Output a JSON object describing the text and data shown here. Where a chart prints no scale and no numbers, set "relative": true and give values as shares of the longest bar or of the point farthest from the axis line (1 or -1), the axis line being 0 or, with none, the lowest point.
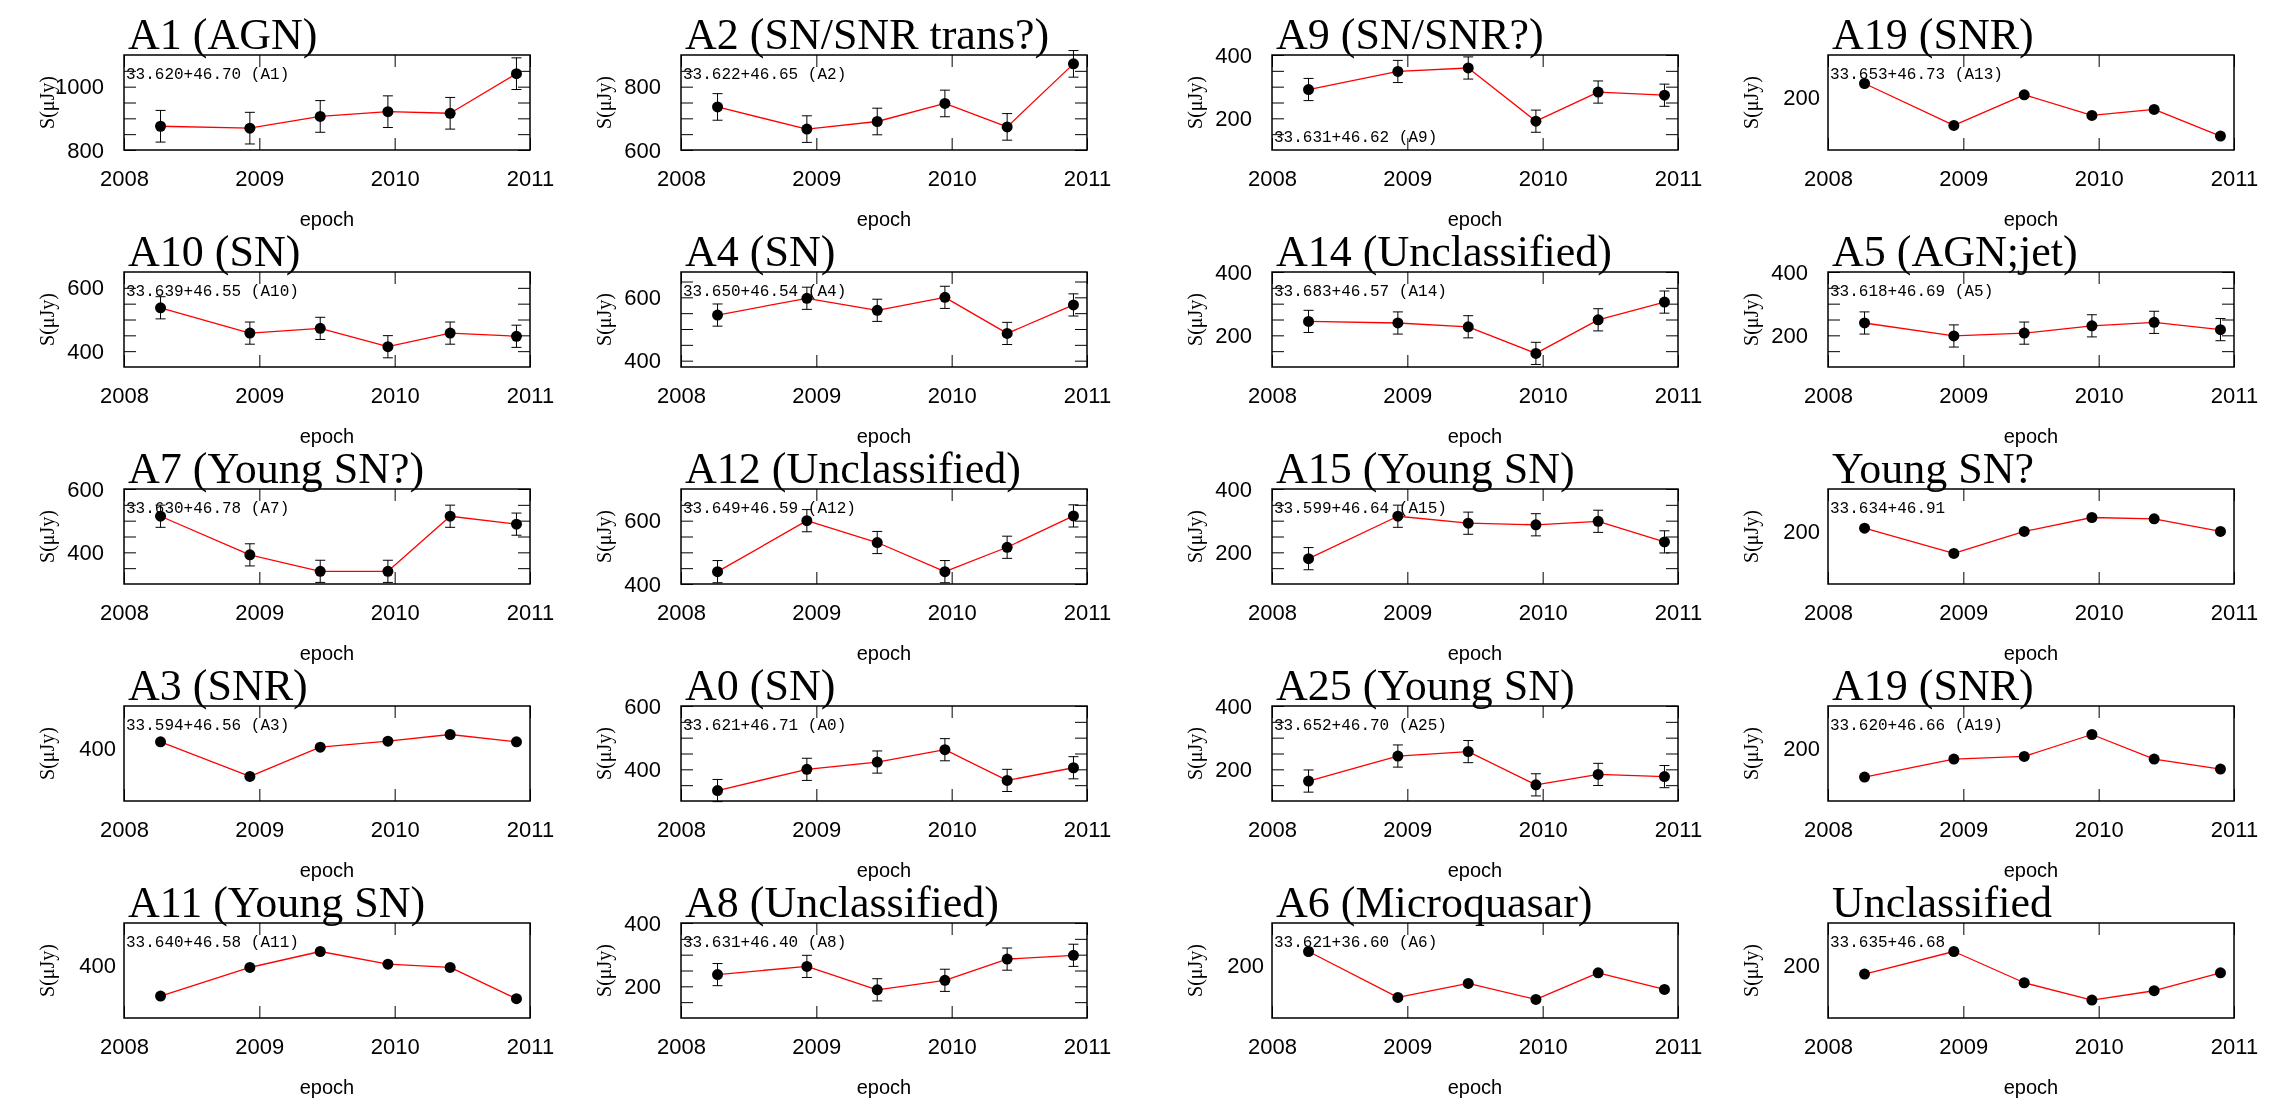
{
  "chart_data": [
    {
      "type": "line",
      "title": "A1 (AGN)",
      "annotations": [
        "33.620+46.70 (A1)"
      ],
      "xlabel": "epoch",
      "ylabel": "S(μJy)",
      "marker": "circle",
      "line_style": "solid",
      "xlim": [
        2008,
        2011
      ],
      "xticks": [
        2008,
        2009,
        2010,
        2011
      ],
      "ylim": [
        800,
        1100
      ],
      "yticks": [
        800,
        {
          "value": 850,
          "label": null
        },
        {
          "value": 900,
          "label": null
        },
        {
          "value": 950,
          "label": null
        },
        1000,
        {
          "value": 1050,
          "label": null
        }
      ],
      "x": [
        2008.27,
        2008.93,
        2009.45,
        2009.95,
        2010.41,
        2010.9
      ],
      "series": [
        {
          "color": "#ff0000",
          "values": [
            875,
            869,
            906,
            921,
            916,
            1041
          ],
          "errors": [
            50,
            50,
            50,
            50,
            50,
            50
          ]
        }
      ]
    },
    {
      "type": "line",
      "title": "A2 (SN/SNR trans?)",
      "annotations": [
        "33.622+46.65 (A2)"
      ],
      "xlabel": "epoch",
      "ylabel": "S(μJy)",
      "marker": "circle",
      "line_style": "solid",
      "xlim": [
        2008,
        2011
      ],
      "xticks": [
        2008,
        2009,
        2010,
        2011
      ],
      "ylim": [
        600,
        900
      ],
      "yticks": [
        600,
        {
          "value": 650,
          "label": null
        },
        {
          "value": 700,
          "label": null
        },
        {
          "value": 750,
          "label": null
        },
        800,
        {
          "value": 850,
          "label": null
        }
      ],
      "x": [
        2008.27,
        2008.93,
        2009.45,
        2009.95,
        2010.41,
        2010.9
      ],
      "series": [
        {
          "color": "#ff0000",
          "values": [
            736,
            666,
            690,
            747,
            673,
            872
          ],
          "errors": [
            42,
            42,
            42,
            42,
            42,
            42
          ]
        }
      ]
    },
    {
      "type": "line",
      "title": "A9 (SN/SNR?)",
      "annotations": [
        "33.631+46.62 (A9)"
      ],
      "xlabel": "epoch",
      "ylabel": "S(μJy)",
      "marker": "circle",
      "line_style": "solid",
      "xlim": [
        2008,
        2011
      ],
      "xticks": [
        2008,
        2009,
        2010,
        2011
      ],
      "ylim": [
        100,
        400
      ],
      "yticks": [
        {
          "value": 150,
          "label": null
        },
        200,
        {
          "value": 250,
          "label": null
        },
        {
          "value": 300,
          "label": null
        },
        {
          "value": 350,
          "label": null
        },
        400
      ],
      "x": [
        2008.27,
        2008.93,
        2009.45,
        2009.95,
        2010.41,
        2010.9
      ],
      "series": [
        {
          "color": "#ff0000",
          "values": [
            291,
            348,
            359,
            191,
            283,
            273
          ],
          "errors": [
            35,
            35,
            35,
            35,
            35,
            35
          ]
        }
      ]
    },
    {
      "type": "line",
      "title": "A19 (SNR)",
      "annotations": [
        "33.653+46.73 (A13)",
        "200"
      ],
      "xlabel": "epoch",
      "ylabel": "S(μJy)",
      "marker": "circle",
      "line_style": "solid",
      "xlim": [
        2008,
        2011
      ],
      "xticks": [
        2008,
        2009,
        2010,
        2011
      ],
      "relative": true,
      "x": [
        2008.27,
        2008.93,
        2009.45,
        2009.95,
        2010.41,
        2010.9
      ],
      "series": [
        {
          "color": "#ff0000",
          "values": [
            1,
            0.37,
            0.83,
            0.52,
            0.61,
            0.21
          ]
        }
      ]
    },
    {
      "type": "line",
      "title": "A10 (SN)",
      "annotations": [
        "33.639+46.55 (A10)"
      ],
      "xlabel": "epoch",
      "ylabel": "S(μJy)",
      "marker": "circle",
      "line_style": "solid",
      "xlim": [
        2008,
        2011
      ],
      "xticks": [
        2008,
        2009,
        2010,
        2011
      ],
      "ylim": [
        350,
        650
      ],
      "yticks": [
        400,
        {
          "value": 450,
          "label": null
        },
        {
          "value": 500,
          "label": null
        },
        {
          "value": 550,
          "label": null
        },
        600
      ],
      "x": [
        2008.27,
        2008.93,
        2009.45,
        2009.95,
        2010.41,
        2010.9
      ],
      "series": [
        {
          "color": "#ff0000",
          "values": [
            537,
            457,
            472,
            414,
            457,
            447
          ],
          "errors": [
            35,
            35,
            35,
            35,
            35,
            35
          ]
        }
      ]
    },
    {
      "type": "line",
      "title": "A4 (SN)",
      "annotations": [
        "33.650+46.54 (A4)"
      ],
      "xlabel": "epoch",
      "ylabel": "S(μJy)",
      "marker": "circle",
      "line_style": "solid",
      "xlim": [
        2008,
        2011
      ],
      "xticks": [
        2008,
        2009,
        2010,
        2011
      ],
      "ylim": [
        380,
        680
      ],
      "yticks": [
        400,
        {
          "value": 450,
          "label": null
        },
        {
          "value": 500,
          "label": null
        },
        {
          "value": 550,
          "label": null
        },
        600,
        {
          "value": 650,
          "label": null
        }
      ],
      "x": [
        2008.27,
        2008.93,
        2009.45,
        2009.95,
        2010.41,
        2010.9
      ],
      "series": [
        {
          "color": "#ff0000",
          "values": [
            544,
            597,
            559,
            600,
            486,
            576
          ],
          "errors": [
            35,
            35,
            35,
            35,
            35,
            35
          ]
        }
      ]
    },
    {
      "type": "line",
      "title": "A14 (Unclassified)",
      "annotations": [
        "33.683+46.57 (A14)"
      ],
      "xlabel": "epoch",
      "ylabel": "S(μJy)",
      "marker": "circle",
      "line_style": "solid",
      "xlim": [
        2008,
        2011
      ],
      "xticks": [
        2008,
        2009,
        2010,
        2011
      ],
      "ylim": [
        100,
        400
      ],
      "yticks": [
        {
          "value": 150,
          "label": null
        },
        200,
        {
          "value": 250,
          "label": null
        },
        {
          "value": 300,
          "label": null
        },
        {
          "value": 350,
          "label": null
        },
        400
      ],
      "x": [
        2008.27,
        2008.93,
        2009.45,
        2009.95,
        2010.41,
        2010.9
      ],
      "series": [
        {
          "color": "#ff0000",
          "values": [
            244,
            239,
            227,
            143,
            249,
            305
          ],
          "errors": [
            35,
            35,
            35,
            35,
            35,
            35
          ]
        }
      ]
    },
    {
      "type": "line",
      "title": "A5 (AGN;jet)",
      "annotations": [
        "33.618+46.69 (A5)"
      ],
      "xlabel": "epoch",
      "ylabel": "S(μJy)",
      "marker": "circle",
      "line_style": "solid",
      "xlim": [
        2008,
        2011
      ],
      "xticks": [
        2008,
        2009,
        2010,
        2011
      ],
      "ylim": [
        100,
        400
      ],
      "yticks": [
        {
          "value": 150,
          "label": null
        },
        200,
        {
          "value": 250,
          "label": null
        },
        {
          "value": 300,
          "label": null
        },
        {
          "value": 350,
          "label": null
        },
        400
      ],
      "x": [
        2008.27,
        2008.93,
        2009.45,
        2009.95,
        2010.41,
        2010.9
      ],
      "series": [
        {
          "color": "#ff0000",
          "values": [
            239,
            198,
            207,
            230,
            241,
            218
          ],
          "errors": [
            35,
            35,
            35,
            35,
            35,
            35
          ]
        }
      ]
    },
    {
      "type": "line",
      "title": "A7 (Young SN?)",
      "annotations": [
        "33.630+46.78 (A7)"
      ],
      "xlabel": "epoch",
      "ylabel": "S(μJy)",
      "marker": "circle",
      "line_style": "solid",
      "xlim": [
        2008,
        2011
      ],
      "xticks": [
        2008,
        2009,
        2010,
        2011
      ],
      "ylim": [
        300,
        600
      ],
      "yticks": [
        {
          "value": 350,
          "label": null
        },
        400,
        {
          "value": 450,
          "label": null
        },
        {
          "value": 500,
          "label": null
        },
        {
          "value": 550,
          "label": null
        },
        600
      ],
      "x": [
        2008.27,
        2008.93,
        2009.45,
        2009.95,
        2010.41,
        2010.9
      ],
      "series": [
        {
          "color": "#ff0000",
          "values": [
            514,
            392,
            340,
            340,
            514,
            489
          ],
          "errors": [
            35,
            35,
            35,
            35,
            35,
            35
          ]
        }
      ]
    },
    {
      "type": "line",
      "title": "A12 (Unclassified)",
      "annotations": [
        "33.649+46.59 (A12)"
      ],
      "xlabel": "epoch",
      "ylabel": "S(μJy)",
      "marker": "circle",
      "line_style": "solid",
      "xlim": [
        2008,
        2011
      ],
      "xticks": [
        2008,
        2009,
        2010,
        2011
      ],
      "ylim": [
        400,
        700
      ],
      "yticks": [
        400,
        {
          "value": 450,
          "label": null
        },
        {
          "value": 500,
          "label": null
        },
        {
          "value": 550,
          "label": null
        },
        600,
        {
          "value": 650,
          "label": null
        }
      ],
      "x": [
        2008.27,
        2008.93,
        2009.45,
        2009.95,
        2010.41,
        2010.9
      ],
      "series": [
        {
          "color": "#ff0000",
          "values": [
            439,
            600,
            531,
            439,
            516,
            615
          ],
          "errors": [
            35,
            35,
            35,
            35,
            35,
            35
          ]
        }
      ]
    },
    {
      "type": "line",
      "title": "A15 (Young SN)",
      "annotations": [
        "33.599+46.64 (A15)"
      ],
      "xlabel": "epoch",
      "ylabel": "S(μJy)",
      "marker": "circle",
      "line_style": "solid",
      "xlim": [
        2008,
        2011
      ],
      "xticks": [
        2008,
        2009,
        2010,
        2011
      ],
      "ylim": [
        100,
        400
      ],
      "yticks": [
        {
          "value": 150,
          "label": null
        },
        200,
        {
          "value": 250,
          "label": null
        },
        {
          "value": 300,
          "label": null
        },
        {
          "value": 350,
          "label": null
        },
        400
      ],
      "x": [
        2008.27,
        2008.93,
        2009.45,
        2009.95,
        2010.41,
        2010.9
      ],
      "series": [
        {
          "color": "#ff0000",
          "values": [
            180,
            314,
            292,
            287,
            298,
            233
          ],
          "errors": [
            35,
            35,
            35,
            35,
            35,
            35
          ]
        }
      ]
    },
    {
      "type": "line",
      "title": "Young SN?",
      "annotations": [
        "33.634+46.91",
        "200"
      ],
      "xlabel": "epoch",
      "ylabel": "S(μJy)",
      "marker": "circle",
      "line_style": "solid",
      "xlim": [
        2008,
        2011
      ],
      "xticks": [
        2008,
        2009,
        2010,
        2011
      ],
      "relative": true,
      "x": [
        2008.27,
        2008.93,
        2009.45,
        2009.95,
        2010.41,
        2010.9
      ],
      "series": [
        {
          "color": "#ff0000",
          "values": [
            0.84,
            0.46,
            0.79,
            1,
            0.98,
            0.79
          ]
        }
      ]
    },
    {
      "type": "line",
      "title": "A3 (SNR)",
      "annotations": [
        "33.594+46.56 (A3)",
        "400"
      ],
      "xlabel": "epoch",
      "ylabel": "S(μJy)",
      "marker": "circle",
      "line_style": "solid",
      "xlim": [
        2008,
        2011
      ],
      "xticks": [
        2008,
        2009,
        2010,
        2011
      ],
      "relative": true,
      "x": [
        2008.27,
        2008.93,
        2009.45,
        2009.95,
        2010.41,
        2010.9
      ],
      "series": [
        {
          "color": "#ff0000",
          "values": [
            0.89,
            0.37,
            0.81,
            0.9,
            1,
            0.89
          ]
        }
      ]
    },
    {
      "type": "line",
      "title": "A0 (SN)",
      "annotations": [
        "33.621+46.71 (A0)"
      ],
      "xlabel": "epoch",
      "ylabel": "S(μJy)",
      "marker": "circle",
      "line_style": "solid",
      "xlim": [
        2008,
        2011
      ],
      "xticks": [
        2008,
        2009,
        2010,
        2011
      ],
      "ylim": [
        300,
        600
      ],
      "yticks": [
        {
          "value": 350,
          "label": null
        },
        400,
        {
          "value": 450,
          "label": null
        },
        {
          "value": 500,
          "label": null
        },
        {
          "value": 550,
          "label": null
        },
        600
      ],
      "x": [
        2008.27,
        2008.93,
        2009.45,
        2009.95,
        2010.41,
        2010.9
      ],
      "series": [
        {
          "color": "#ff0000",
          "values": [
            333,
            400,
            423,
            462,
            365,
            405
          ],
          "errors": [
            35,
            35,
            35,
            35,
            35,
            35
          ]
        }
      ]
    },
    {
      "type": "line",
      "title": "A25 (Young SN)",
      "annotations": [
        "33.652+46.70 (A25)"
      ],
      "xlabel": "epoch",
      "ylabel": "S(μJy)",
      "marker": "circle",
      "line_style": "solid",
      "xlim": [
        2008,
        2011
      ],
      "xticks": [
        2008,
        2009,
        2010,
        2011
      ],
      "ylim": [
        100,
        400
      ],
      "yticks": [
        {
          "value": 150,
          "label": null
        },
        200,
        {
          "value": 250,
          "label": null
        },
        {
          "value": 300,
          "label": null
        },
        {
          "value": 350,
          "label": null
        },
        400
      ],
      "x": [
        2008.27,
        2008.93,
        2009.45,
        2009.95,
        2010.41,
        2010.9
      ],
      "series": [
        {
          "color": "#ff0000",
          "values": [
            163,
            242,
            256,
            151,
            184,
            177
          ],
          "errors": [
            35,
            35,
            35,
            35,
            35,
            35
          ]
        }
      ]
    },
    {
      "type": "line",
      "title": "A19 (SNR)",
      "annotations": [
        "33.620+46.66 (A19)",
        "200"
      ],
      "xlabel": "epoch",
      "ylabel": "S(μJy)",
      "marker": "circle",
      "line_style": "solid",
      "xlim": [
        2008,
        2011
      ],
      "xticks": [
        2008,
        2009,
        2010,
        2011
      ],
      "relative": true,
      "x": [
        2008.27,
        2008.93,
        2009.45,
        2009.95,
        2010.41,
        2010.9
      ],
      "series": [
        {
          "color": "#ff0000",
          "values": [
            0.36,
            0.63,
            0.67,
            1,
            0.63,
            0.48
          ]
        }
      ]
    },
    {
      "type": "line",
      "title": "A11 (Young SN)",
      "annotations": [
        "33.640+46.58 (A11)",
        "400"
      ],
      "xlabel": "epoch",
      "ylabel": "S(μJy)",
      "marker": "circle",
      "line_style": "solid",
      "xlim": [
        2008,
        2011
      ],
      "xticks": [
        2008,
        2009,
        2010,
        2011
      ],
      "relative": true,
      "x": [
        2008.27,
        2008.93,
        2009.45,
        2009.95,
        2010.41,
        2010.9
      ],
      "series": [
        {
          "color": "#ff0000",
          "values": [
            0.33,
            0.76,
            1,
            0.81,
            0.76,
            0.29
          ]
        }
      ]
    },
    {
      "type": "line",
      "title": "A8 (Unclassified)",
      "annotations": [
        "33.631+46.40 (A8)"
      ],
      "xlabel": "epoch",
      "ylabel": "S(μJy)",
      "marker": "circle",
      "line_style": "solid",
      "xlim": [
        2008,
        2011
      ],
      "xticks": [
        2008,
        2009,
        2010,
        2011
      ],
      "ylim": [
        100,
        400
      ],
      "yticks": [
        {
          "value": 150,
          "label": null
        },
        200,
        {
          "value": 250,
          "label": null
        },
        {
          "value": 300,
          "label": null
        },
        {
          "value": 350,
          "label": null
        },
        400
      ],
      "x": [
        2008.27,
        2008.93,
        2009.45,
        2009.95,
        2010.41,
        2010.9
      ],
      "series": [
        {
          "color": "#ff0000",
          "values": [
            237,
            263,
            189,
            219,
            286,
            298
          ],
          "errors": [
            35,
            35,
            35,
            35,
            35,
            35
          ]
        }
      ]
    },
    {
      "type": "line",
      "title": "A6 (Microquasar)",
      "annotations": [
        "33.621+36.60 (A6)",
        "200"
      ],
      "xlabel": "epoch",
      "ylabel": "S(μJy)",
      "marker": "circle",
      "line_style": "solid",
      "xlim": [
        2008,
        2011
      ],
      "xticks": [
        2008,
        2009,
        2010,
        2011
      ],
      "relative": true,
      "x": [
        2008.27,
        2008.93,
        2009.45,
        2009.95,
        2010.41,
        2010.9
      ],
      "series": [
        {
          "color": "#ff0000",
          "values": [
            1,
            0.31,
            0.52,
            0.28,
            0.68,
            0.43
          ]
        }
      ]
    },
    {
      "type": "line",
      "title": "Unclassified",
      "annotations": [
        "33.635+46.68",
        "200"
      ],
      "xlabel": "epoch",
      "ylabel": "S(μJy)",
      "marker": "circle",
      "line_style": "solid",
      "xlim": [
        2008,
        2011
      ],
      "xticks": [
        2008,
        2009,
        2010,
        2011
      ],
      "relative": true,
      "x": [
        2008.27,
        2008.93,
        2009.45,
        2009.95,
        2010.41,
        2010.9
      ],
      "series": [
        {
          "color": "#ff0000",
          "values": [
            0.66,
            1,
            0.53,
            0.27,
            0.41,
            0.68
          ]
        }
      ]
    }
  ]
}
